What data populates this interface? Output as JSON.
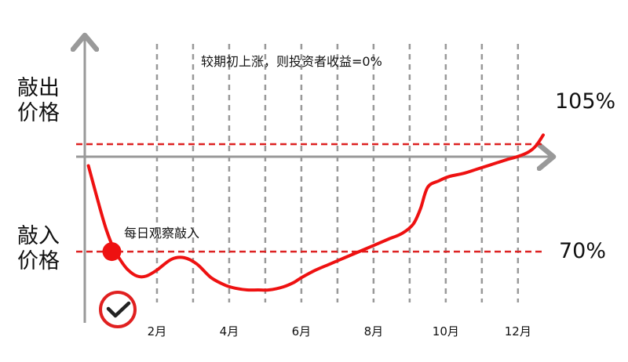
{
  "labels": {
    "knock_out_price": [
      "敲出",
      "价格"
    ],
    "knock_in_price": [
      "敲入",
      "价格"
    ],
    "knock_out_level": "105%",
    "knock_in_level": "70%",
    "top_note": "较期初上涨，则投资者收益=0%",
    "knock_in_note": "每日观察敲入"
  },
  "colors": {
    "curve": "#ee1111",
    "reference_lines": "#dd2222",
    "axis": "#999999",
    "grid": "#999999",
    "marker": "#ee1111",
    "check_ring": "#e02020",
    "check_mark": "#222222"
  },
  "chart_data": {
    "type": "line",
    "title": "",
    "xlabel": "",
    "ylabel": "",
    "x_ticks": [
      {
        "month": 2,
        "label": "2月"
      },
      {
        "month": 4,
        "label": "4月"
      },
      {
        "month": 6,
        "label": "6月"
      },
      {
        "month": 8,
        "label": "8月"
      },
      {
        "month": 10,
        "label": "10月"
      },
      {
        "month": 12,
        "label": "12月"
      }
    ],
    "grid_months": [
      2,
      3,
      4,
      5,
      6,
      7,
      8,
      9,
      10,
      11,
      12
    ],
    "xlim": [
      0,
      12.7
    ],
    "ylim": [
      57,
      152
    ],
    "start_level": 100,
    "reference_lines": [
      {
        "name": "knock_out",
        "value": 105,
        "label": "105%"
      },
      {
        "name": "knock_in",
        "value": 70,
        "label": "70%"
      }
    ],
    "series": [
      {
        "x": [
          0.1,
          0.4,
          0.6,
          0.8,
          1.0,
          1.2,
          1.45,
          1.7,
          2.0,
          2.4,
          2.75,
          3.1,
          3.5,
          3.9,
          4.2,
          4.5,
          4.8,
          5.1,
          5.5,
          5.8,
          6.0,
          6.4,
          6.8,
          7.2,
          7.6,
          8.0,
          8.4,
          8.8,
          9.1,
          9.3,
          9.5,
          9.8,
          10.1,
          10.5,
          10.9,
          11.3,
          11.7,
          12.0,
          12.3,
          12.5,
          12.7
        ],
        "y": [
          98,
          85,
          77,
          71,
          67,
          64,
          62,
          62,
          64,
          67.5,
          68,
          66,
          61.5,
          59,
          58,
          57.5,
          57.5,
          57.5,
          58.5,
          60,
          61.5,
          64,
          66,
          68,
          70,
          72,
          74,
          76,
          79,
          84,
          91,
          93,
          94.5,
          95.5,
          97,
          98.5,
          100,
          101,
          102.5,
          104.5,
          108
        ]
      }
    ],
    "markers": [
      {
        "name": "knock_in_point",
        "x": 0.75,
        "y": 70
      }
    ]
  }
}
